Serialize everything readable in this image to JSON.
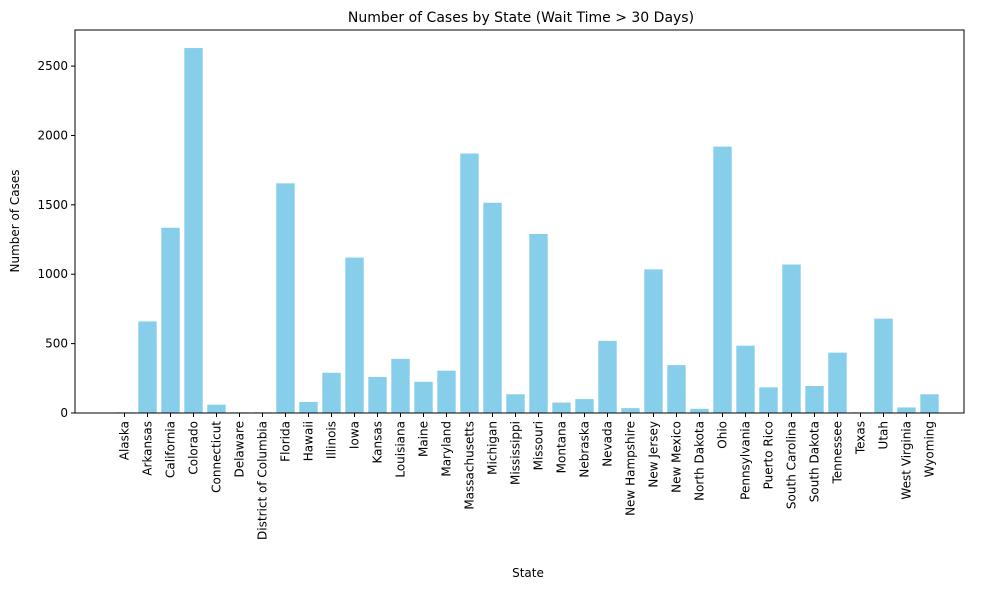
{
  "chart_data": {
    "type": "bar",
    "title": "Number of Cases by State (Wait Time > 30 Days)",
    "xlabel": "State",
    "ylabel": "Number of Cases",
    "ylim": [
      0,
      2760
    ],
    "yticks": [
      0,
      500,
      1000,
      1500,
      2000,
      2500
    ],
    "grid": false,
    "legend": "none",
    "bar_color": "#87ceeb",
    "categories": [
      "Alaska",
      "Arkansas",
      "California",
      "Colorado",
      "Connecticut",
      "Delaware",
      "District of Columbia",
      "Florida",
      "Hawaii",
      "Illinois",
      "Iowa",
      "Kansas",
      "Louisiana",
      "Maine",
      "Maryland",
      "Massachusetts",
      "Michigan",
      "Mississippi",
      "Missouri",
      "Montana",
      "Nebraska",
      "Nevada",
      "New Hampshire",
      "New Jersey",
      "New Mexico",
      "North Dakota",
      "Ohio",
      "Pennsylvania",
      "Puerto Rico",
      "South Carolina",
      "South Dakota",
      "Tennessee",
      "Texas",
      "Utah",
      "West Virginia",
      "Wyoming"
    ],
    "values": [
      5,
      660,
      1335,
      2630,
      60,
      5,
      5,
      1655,
      80,
      290,
      1120,
      260,
      390,
      225,
      305,
      1870,
      1515,
      135,
      1290,
      75,
      100,
      520,
      35,
      1035,
      345,
      30,
      1920,
      485,
      185,
      1070,
      195,
      435,
      5,
      680,
      40,
      135
    ]
  }
}
